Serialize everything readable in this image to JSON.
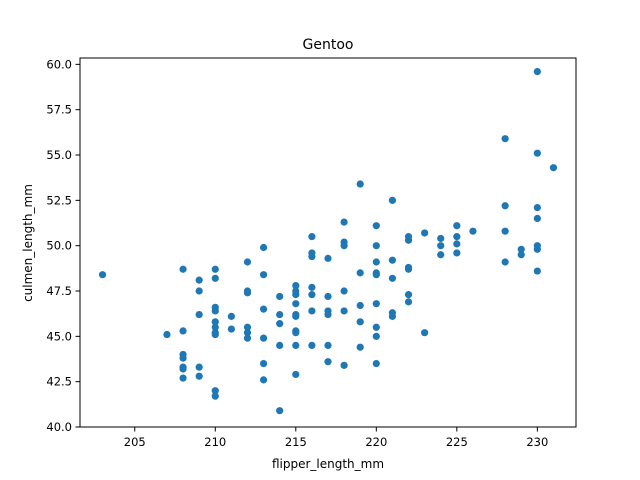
{
  "chart_data": {
    "type": "scatter",
    "title": "Gentoo",
    "xlabel": "flipper_length_mm",
    "ylabel": "culmen_length_mm",
    "xlim": [
      201.6,
      232.4
    ],
    "ylim": [
      40.0,
      60.35
    ],
    "xticks": [
      205,
      210,
      215,
      220,
      225,
      230
    ],
    "yticks": [
      40.0,
      42.5,
      45.0,
      47.5,
      50.0,
      52.5,
      55.0,
      57.5,
      60.0
    ],
    "xtick_labels": [
      "205",
      "210",
      "215",
      "220",
      "225",
      "230"
    ],
    "ytick_labels": [
      "40.0",
      "42.5",
      "45.0",
      "47.5",
      "50.0",
      "52.5",
      "55.0",
      "57.5",
      "60.0"
    ],
    "grid": false,
    "marker_color": "#1f77b4",
    "points": [
      [
        203,
        48.4
      ],
      [
        207,
        45.1
      ],
      [
        208,
        48.7
      ],
      [
        208,
        45.3
      ],
      [
        208,
        44.0
      ],
      [
        208,
        43.8
      ],
      [
        208,
        43.3
      ],
      [
        208,
        43.2
      ],
      [
        208,
        42.7
      ],
      [
        209,
        48.1
      ],
      [
        209,
        47.5
      ],
      [
        209,
        46.2
      ],
      [
        209,
        43.3
      ],
      [
        209,
        42.8
      ],
      [
        210,
        48.7
      ],
      [
        210,
        48.2
      ],
      [
        210,
        46.6
      ],
      [
        210,
        46.4
      ],
      [
        210,
        45.8
      ],
      [
        210,
        45.5
      ],
      [
        210,
        45.2
      ],
      [
        210,
        45.1
      ],
      [
        210,
        42.0
      ],
      [
        210,
        41.7
      ],
      [
        211,
        46.1
      ],
      [
        211,
        45.4
      ],
      [
        212,
        49.1
      ],
      [
        212,
        47.5
      ],
      [
        212,
        47.4
      ],
      [
        212,
        45.5
      ],
      [
        212,
        45.2
      ],
      [
        212,
        44.9
      ],
      [
        213,
        49.9
      ],
      [
        213,
        48.4
      ],
      [
        213,
        46.5
      ],
      [
        213,
        44.9
      ],
      [
        213,
        43.5
      ],
      [
        213,
        42.6
      ],
      [
        214,
        47.2
      ],
      [
        214,
        46.2
      ],
      [
        214,
        45.7
      ],
      [
        214,
        44.5
      ],
      [
        214,
        40.9
      ],
      [
        215,
        47.8
      ],
      [
        215,
        47.5
      ],
      [
        215,
        47.3
      ],
      [
        215,
        46.8
      ],
      [
        215,
        46.2
      ],
      [
        215,
        46.1
      ],
      [
        215,
        45.3
      ],
      [
        215,
        45.2
      ],
      [
        215,
        44.5
      ],
      [
        215,
        42.9
      ],
      [
        216,
        50.5
      ],
      [
        216,
        49.6
      ],
      [
        216,
        49.4
      ],
      [
        216,
        47.7
      ],
      [
        216,
        47.3
      ],
      [
        216,
        46.4
      ],
      [
        216,
        44.5
      ],
      [
        217,
        49.3
      ],
      [
        217,
        47.2
      ],
      [
        217,
        46.4
      ],
      [
        217,
        46.2
      ],
      [
        217,
        44.5
      ],
      [
        217,
        43.6
      ],
      [
        218,
        51.3
      ],
      [
        218,
        50.2
      ],
      [
        218,
        50.0
      ],
      [
        218,
        47.5
      ],
      [
        218,
        46.4
      ],
      [
        218,
        43.4
      ],
      [
        219,
        53.4
      ],
      [
        219,
        48.5
      ],
      [
        219,
        46.7
      ],
      [
        219,
        45.8
      ],
      [
        219,
        44.4
      ],
      [
        220,
        51.1
      ],
      [
        220,
        50.0
      ],
      [
        220,
        49.1
      ],
      [
        220,
        48.5
      ],
      [
        220,
        48.4
      ],
      [
        220,
        46.8
      ],
      [
        220,
        45.5
      ],
      [
        220,
        45.0
      ],
      [
        220,
        43.5
      ],
      [
        221,
        52.5
      ],
      [
        221,
        49.2
      ],
      [
        221,
        48.2
      ],
      [
        221,
        46.3
      ],
      [
        221,
        46.1
      ],
      [
        222,
        50.5
      ],
      [
        222,
        50.3
      ],
      [
        222,
        48.8
      ],
      [
        222,
        48.7
      ],
      [
        222,
        47.3
      ],
      [
        222,
        46.9
      ],
      [
        223,
        50.7
      ],
      [
        223,
        45.2
      ],
      [
        224,
        50.4
      ],
      [
        224,
        50.0
      ],
      [
        224,
        49.5
      ],
      [
        225,
        51.1
      ],
      [
        225,
        50.5
      ],
      [
        225,
        50.1
      ],
      [
        225,
        49.6
      ],
      [
        226,
        50.8
      ],
      [
        228,
        55.9
      ],
      [
        228,
        52.2
      ],
      [
        228,
        50.8
      ],
      [
        228,
        49.1
      ],
      [
        229,
        49.8
      ],
      [
        229,
        49.5
      ],
      [
        230,
        59.6
      ],
      [
        230,
        55.1
      ],
      [
        230,
        52.1
      ],
      [
        230,
        51.5
      ],
      [
        230,
        50.0
      ],
      [
        230,
        49.8
      ],
      [
        230,
        48.6
      ],
      [
        231,
        54.3
      ]
    ]
  }
}
